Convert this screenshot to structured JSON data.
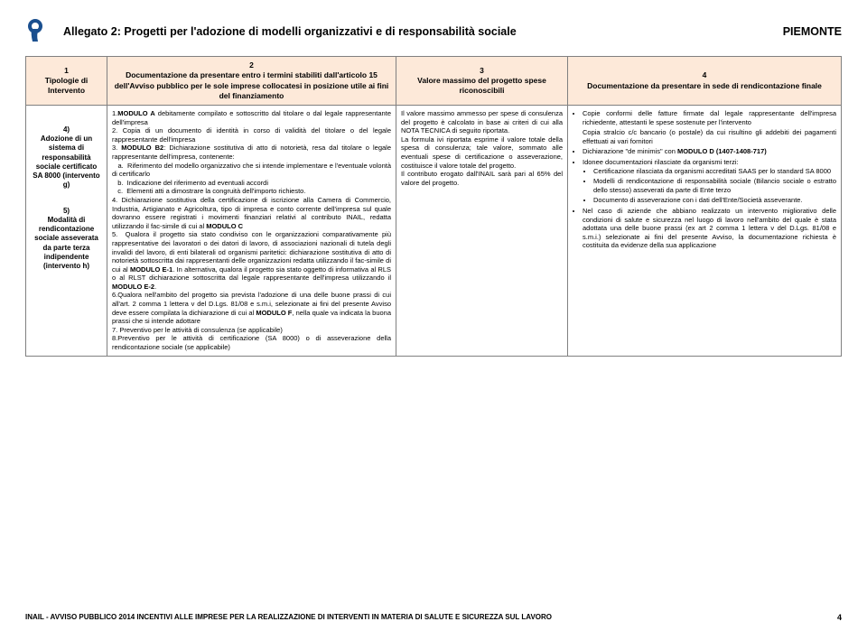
{
  "header": {
    "title": "Allegato 2: Progetti per l'adozione di modelli organizzativi e di responsabilità sociale",
    "region": "PIEMONTE"
  },
  "table": {
    "headers": {
      "c1_num": "1",
      "c1": "Tipologie di Intervento",
      "c2_num": "2",
      "c2": "Documentazione da presentare entro i termini stabiliti dall'articolo 15 dell'Avviso pubblico per le sole imprese collocatesi in posizione utile ai fini del finanziamento",
      "c3_num": "3",
      "c3": "Valore massimo del progetto spese riconoscibili",
      "c4_num": "4",
      "c4": "Documentazione da presentare in sede di rendicontazione finale"
    },
    "row": {
      "label1_num": "4)",
      "label1": "Adozione di un sistema di responsabilità sociale certificato SA 8000 (intervento g)",
      "label2_num": "5)",
      "label2": "Modalità di rendicontazione sociale asseverata da parte terza indipendente (intervento h)",
      "c2_html": "1.<b>MODULO A</b> debitamente compilato e sottoscritto dal titolare o dal legale rappresentante dell'impresa<br>2. Copia di un documento di identità in corso di validità del titolare o del legale rappresentante dell'impresa<br>3. <b>MODULO B2</b>: Dichiarazione sostitutiva di atto di notorietà, resa dal titolare o legale rappresentante dell'impresa, contenente:<br>&nbsp;&nbsp;&nbsp;a.&nbsp;&nbsp;Riferimento del modello organizzativo che si intende implementare e l'eventuale volontà di certificarlo<br>&nbsp;&nbsp;&nbsp;b.&nbsp;&nbsp;Indicazione del riferimento ad eventuali accordi<br>&nbsp;&nbsp;&nbsp;c.&nbsp;&nbsp;Elementi atti a dimostrare la congruità dell'importo richiesto.<br>4. Dichiarazione sostitutiva della certificazione di iscrizione alla Camera di Commercio, Industria, Artigianato e Agricoltura, tipo di impresa e conto corrente dell'impresa sul quale dovranno essere registrati i movimenti finanziari relativi al contributo INAIL, redatta utilizzando il fac-simile di cui al <b>MODULO C</b><br>5.&nbsp;&nbsp;Qualora il progetto sia stato condiviso con le organizzazioni comparativamente più rappresentative dei lavoratori o dei datori di lavoro, di associazioni nazionali di tutela degli invalidi del lavoro, di enti bilaterali od organismi paritetici: dichiarazione sostitutiva di atto di notorietà sottoscritta dai rappresentanti delle organizzazioni redatta utilizzando il fac-simile di cui al <b>MODULO E-1</b>. In alternativa, qualora il progetto sia stato oggetto di informativa al RLS o al RLST dichiarazione sottoscritta dal legale rappresentante dell'impresa utilizzando il <b>MODULO E-2</b>.<br>6.Qualora nell'ambito del progetto sia prevista l'adozione di una delle buone prassi di cui all'art. 2 comma 1 lettera v del D.Lgs. 81/08 e s.m.i, selezionate ai fini del presente Avviso deve essere compilata la dichiarazione di cui al <b>MODULO F</b>, nella quale va indicata la buona prassi che si intende adottare<br>7. Preventivo per le attività di consulenza (se applicabile)<br>8.Preventivo per le attività di certificazione (SA 8000) o di asseverazione della rendicontazione sociale (se applicabile)",
      "c3_html": "Il valore massimo ammesso per spese di consulenza del progetto è calcolato in base ai criteri di cui alla NOTA TECNICA di seguito riportata.<br>La formula ivi riportata esprime il valore totale della spesa di consulenza; tale valore, sommato alle eventuali spese di certificazione o asseverazione, costituisce il valore totale del progetto.<br>Il contributo erogato dall'INAIL sarà pari al 65% del valore del progetto.",
      "c4_items": [
        {
          "text": "Copie conformi delle fatture firmate dal legale rappresentante dell'impresa richiedente, attestanti le spese sostenute per l'intervento"
        },
        {
          "text": "Copia stralcio c/c bancario (o postale) da cui risultino gli addebiti dei pagamenti effettuati ai vari fornitori",
          "indent": true
        },
        {
          "text": "Dichiarazione \"de minimis\" con <b>MODULO D (1407-1408-717)</b>"
        },
        {
          "text": "Idonee documentazioni rilasciate da organismi terzi:",
          "sub": [
            "Certificazione rilasciata da organismi accreditati SAAS per lo standard SA 8000",
            "Modelli di rendicontazione di responsabilità sociale (Bilancio sociale o estratto dello stesso) asseverati da parte di Ente terzo",
            "Documento di asseverazione con i dati dell'Ente/Società asseverante."
          ]
        },
        {
          "text": "Nel caso di aziende che abbiano realizzato un intervento migliorativo delle condizioni di salute e sicurezza nel luogo di lavoro nell'ambito del quale è stata adottata una delle buone prassi (ex art 2 comma 1 lettera v del D.Lgs. 81/08 e s.m.i.) selezionate ai fini del presente Avviso, la documentazione richiesta è costituita da evidenze della sua applicazione"
        }
      ]
    }
  },
  "footer": {
    "text": "INAIL - AVVISO PUBBLICO 2014 INCENTIVI ALLE IMPRESE PER LA REALIZZAZIONE DI INTERVENTI IN MATERIA DI SALUTE E SICUREZZA SUL LAVORO",
    "page": "4"
  },
  "colors": {
    "header_bg": "#fde9d9",
    "border": "#808080",
    "logo_blue": "#1a4f8f"
  }
}
